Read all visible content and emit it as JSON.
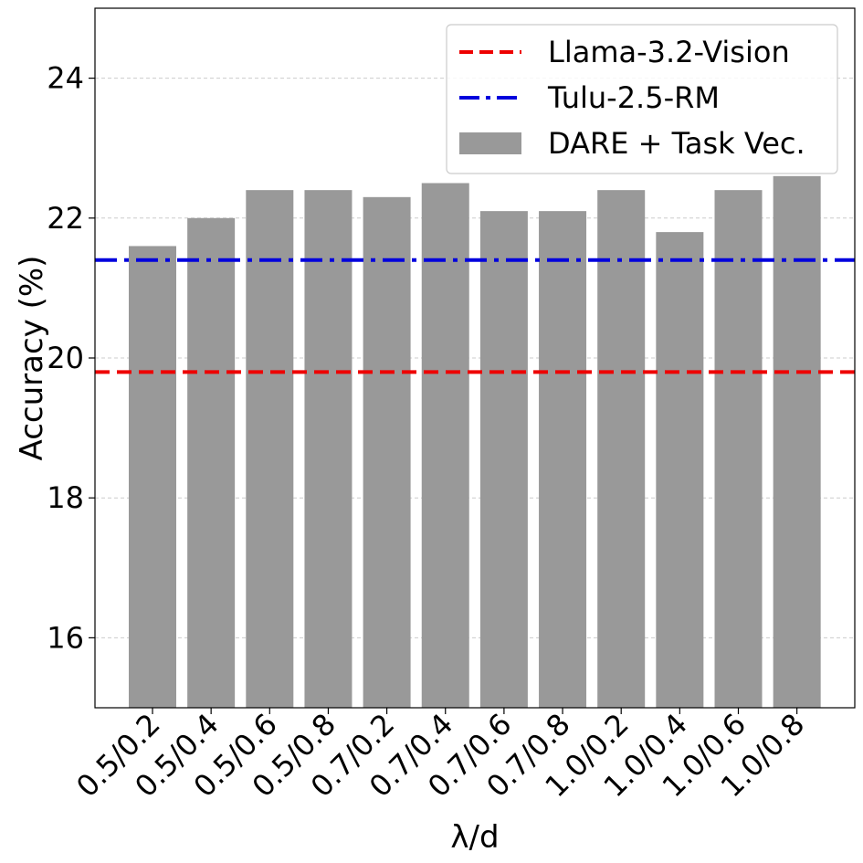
{
  "chart_data": {
    "type": "bar",
    "xlabel": "λ/d",
    "ylabel": "Accuracy (%)",
    "ylim": [
      15,
      25
    ],
    "yticks": [
      16,
      18,
      20,
      22,
      24
    ],
    "grid": "horizontal dashed",
    "legend_position": "top-right",
    "categories": [
      "0.5/0.2",
      "0.5/0.4",
      "0.5/0.6",
      "0.5/0.8",
      "0.7/0.2",
      "0.7/0.4",
      "0.7/0.6",
      "0.7/0.8",
      "1.0/0.2",
      "1.0/0.4",
      "1.0/0.6",
      "1.0/0.8"
    ],
    "series": [
      {
        "name": "DARE + Task Vec.",
        "color": "#999999",
        "values": [
          21.6,
          22.0,
          22.4,
          22.4,
          22.3,
          22.5,
          22.1,
          22.1,
          22.4,
          21.8,
          22.4,
          22.6
        ]
      }
    ],
    "reference_lines": [
      {
        "name": "Llama-3.2-Vision",
        "value": 19.8,
        "color": "#ee0000",
        "style": "dashed"
      },
      {
        "name": "Tulu-2.5-RM",
        "value": 21.4,
        "color": "#0000dd",
        "style": "dashdot"
      }
    ]
  }
}
